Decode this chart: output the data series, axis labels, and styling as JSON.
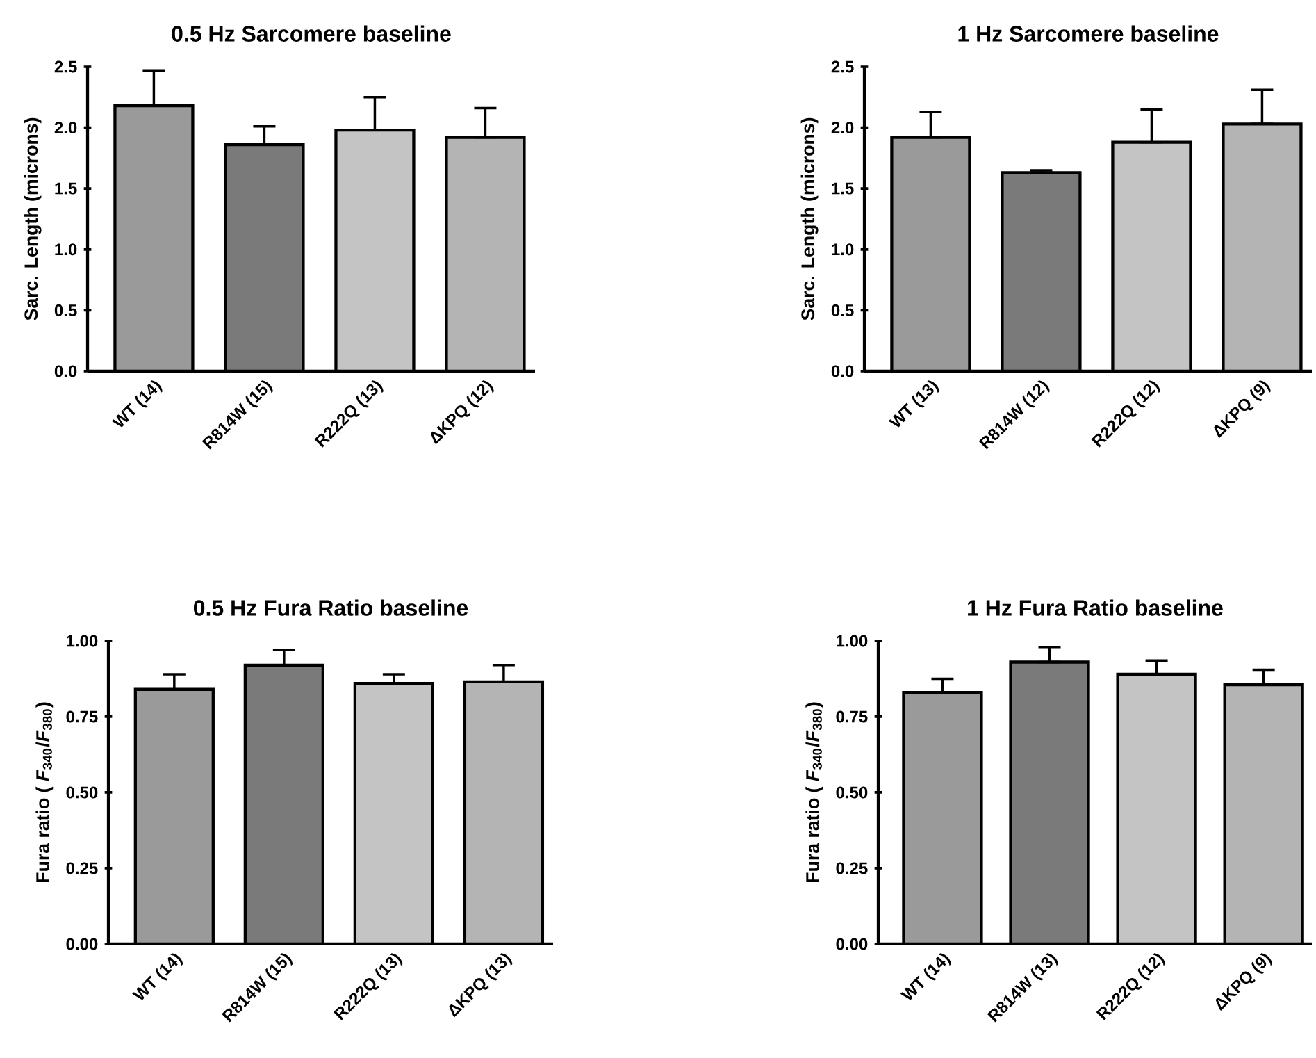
{
  "chart_data": [
    {
      "type": "bar",
      "title": "0.5 Hz Sarcomere baseline",
      "ylabel": "Sarc. Length (microns)",
      "categories": [
        "WT (14)",
        "R814W (15)",
        "R222Q (13)",
        "ΔKPQ (12)"
      ],
      "values": [
        2.18,
        1.86,
        1.98,
        1.92
      ],
      "errors": [
        [
          2.18,
          2.47
        ],
        [
          1.86,
          2.01
        ],
        [
          1.98,
          2.25
        ],
        [
          1.92,
          2.16
        ]
      ],
      "colors": [
        "#9a9a9a",
        "#7a7a7a",
        "#c4c4c4",
        "#b4b4b4"
      ],
      "ylim": [
        0,
        2.5
      ],
      "yticks": [
        {
          "value": 0,
          "label": "0.0"
        },
        {
          "value": 0.5,
          "label": "0.5"
        },
        {
          "value": 1,
          "label": "1.0"
        },
        {
          "value": 1.5,
          "label": "1.5"
        },
        {
          "value": 2,
          "label": "2.0"
        },
        {
          "value": 2.5,
          "label": "2.5"
        }
      ]
    },
    {
      "type": "bar",
      "title": "1 Hz Sarcomere baseline",
      "ylabel": "Sarc. Length (microns)",
      "categories": [
        "WT (13)",
        "R814W (12)",
        "R222Q (12)",
        "ΔKPQ (9)"
      ],
      "values": [
        1.92,
        1.63,
        1.88,
        2.03
      ],
      "errors": [
        [
          1.92,
          2.13
        ],
        [
          1.63,
          1.65
        ],
        [
          1.88,
          2.15
        ],
        [
          2.03,
          2.31
        ]
      ],
      "colors": [
        "#9a9a9a",
        "#7a7a7a",
        "#c4c4c4",
        "#b4b4b4"
      ],
      "ylim": [
        0,
        2.5
      ],
      "yticks": [
        {
          "value": 0,
          "label": "0.0"
        },
        {
          "value": 0.5,
          "label": "0.5"
        },
        {
          "value": 1,
          "label": "1.0"
        },
        {
          "value": 1.5,
          "label": "1.5"
        },
        {
          "value": 2,
          "label": "2.0"
        },
        {
          "value": 2.5,
          "label": "2.5"
        }
      ]
    },
    {
      "type": "bar",
      "title": "0.5 Hz Fura Ratio baseline",
      "ylabel": "Fura ratio ( *F*$_{340}$/*F*$_{380}$)",
      "categories": [
        "WT (14)",
        "R814W (15)",
        "R222Q (13)",
        "ΔKPQ (13)"
      ],
      "values": [
        0.84,
        0.92,
        0.86,
        0.865
      ],
      "errors": [
        [
          0.84,
          0.89
        ],
        [
          0.92,
          0.97
        ],
        [
          0.86,
          0.89
        ],
        [
          0.865,
          0.92
        ]
      ],
      "colors": [
        "#9a9a9a",
        "#7a7a7a",
        "#c4c4c4",
        "#b4b4b4"
      ],
      "ylim": [
        0,
        1
      ],
      "yticks": [
        {
          "value": 0,
          "label": "0.00"
        },
        {
          "value": 0.25,
          "label": "0.25"
        },
        {
          "value": 0.5,
          "label": "0.50"
        },
        {
          "value": 0.75,
          "label": "0.75"
        },
        {
          "value": 1,
          "label": "1.00"
        }
      ]
    },
    {
      "type": "bar",
      "title": "1 Hz Fura Ratio baseline",
      "ylabel": "Fura ratio ( *F*$_{340}$/*F*$_{380}$)",
      "categories": [
        "WT (14)",
        "R814W (13)",
        "R222Q (12)",
        "ΔKPQ (9)"
      ],
      "values": [
        0.83,
        0.93,
        0.89,
        0.855
      ],
      "errors": [
        [
          0.83,
          0.875
        ],
        [
          0.93,
          0.98
        ],
        [
          0.89,
          0.935
        ],
        [
          0.855,
          0.905
        ]
      ],
      "colors": [
        "#9a9a9a",
        "#7a7a7a",
        "#c4c4c4",
        "#b4b4b4"
      ],
      "ylim": [
        0,
        1
      ],
      "yticks": [
        {
          "value": 0,
          "label": "0.00"
        },
        {
          "value": 0.25,
          "label": "0.25"
        },
        {
          "value": 0.5,
          "label": "0.50"
        },
        {
          "value": 0.75,
          "label": "0.75"
        },
        {
          "value": 1,
          "label": "1.00"
        }
      ]
    }
  ]
}
